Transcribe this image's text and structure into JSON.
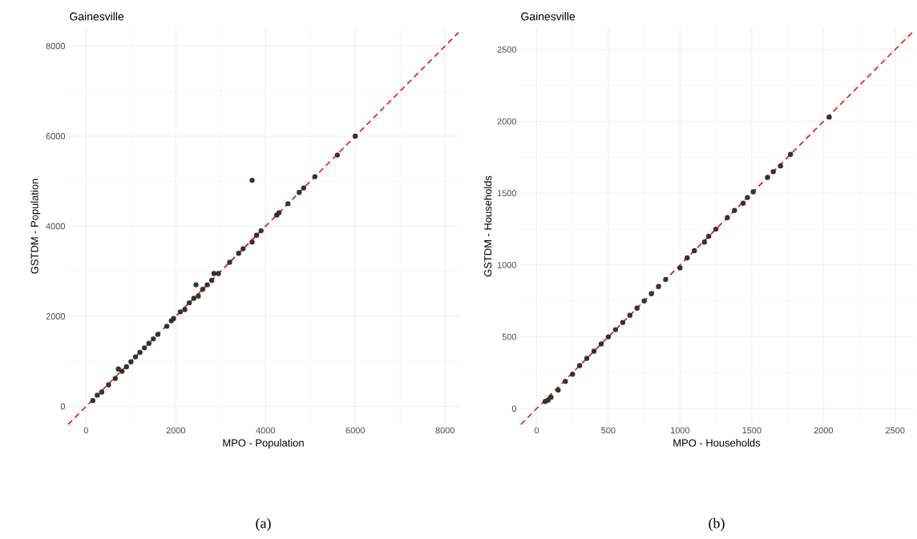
{
  "chart_data": [
    {
      "type": "scatter",
      "title": "Gainesville",
      "xlabel": "MPO - Population",
      "ylabel": "GSTDM - Population",
      "annotations": [
        "(a)"
      ],
      "xlim": [
        -400,
        8300
      ],
      "ylim": [
        -400,
        8400
      ],
      "xticks": [
        0,
        2000,
        4000,
        6000,
        8000
      ],
      "yticks": [
        0,
        2000,
        4000,
        6000,
        8000
      ],
      "grid": true,
      "series": [
        {
          "color": "#333333",
          "marker": "circle",
          "x": [
            150,
            250,
            350,
            500,
            650,
            720,
            800,
            900,
            1000,
            1100,
            1200,
            1300,
            1400,
            1500,
            1600,
            1800,
            1900,
            1950,
            2100,
            2200,
            2300,
            2400,
            2450,
            2500,
            2600,
            2700,
            2800,
            2850,
            2950,
            3200,
            3400,
            3500,
            3700,
            3800,
            3900,
            3700,
            4250,
            4300,
            4500,
            4750,
            4850,
            5100,
            5600,
            6000
          ],
          "values": [
            130,
            250,
            320,
            480,
            620,
            830,
            780,
            880,
            990,
            1100,
            1200,
            1300,
            1400,
            1500,
            1600,
            1780,
            1900,
            1950,
            2100,
            2150,
            2300,
            2400,
            2700,
            2450,
            2600,
            2700,
            2800,
            2950,
            2950,
            3200,
            3400,
            3500,
            3650,
            3800,
            3900,
            5020,
            4250,
            4300,
            4500,
            4750,
            4850,
            5100,
            5580,
            6000
          ]
        },
        {
          "type": "line",
          "color": "#ff0000",
          "line_style": "dashed",
          "marker": "none",
          "x": [
            -400,
            8300
          ],
          "values": [
            -400,
            8300
          ]
        }
      ]
    },
    {
      "type": "scatter",
      "title": "Gainesville",
      "xlabel": "MPO - Households",
      "ylabel": "GSTDM - Households",
      "annotations": [
        "(b)"
      ],
      "xlim": [
        -120,
        2630
      ],
      "ylim": [
        -110,
        2650
      ],
      "xticks": [
        0,
        500,
        1000,
        1500,
        2000,
        2500
      ],
      "yticks": [
        0,
        500,
        1000,
        1500,
        2000,
        2500
      ],
      "grid": true,
      "series": [
        {
          "color": "#333333",
          "marker": "circle",
          "x": [
            60,
            80,
            100,
            150,
            200,
            250,
            300,
            350,
            400,
            450,
            500,
            550,
            600,
            650,
            700,
            750,
            800,
            850,
            900,
            1000,
            1050,
            1100,
            1170,
            1200,
            1250,
            1330,
            1380,
            1440,
            1470,
            1510,
            1610,
            1650,
            1700,
            1770,
            2040
          ],
          "values": [
            50,
            60,
            80,
            130,
            190,
            240,
            300,
            350,
            400,
            450,
            500,
            550,
            600,
            650,
            700,
            750,
            800,
            850,
            900,
            980,
            1050,
            1100,
            1160,
            1200,
            1250,
            1330,
            1380,
            1430,
            1470,
            1510,
            1610,
            1650,
            1690,
            1770,
            2030
          ]
        },
        {
          "type": "line",
          "color": "#ff0000",
          "line_style": "dashed",
          "marker": "none",
          "x": [
            -110,
            2630
          ],
          "values": [
            -110,
            2630
          ]
        }
      ]
    }
  ]
}
